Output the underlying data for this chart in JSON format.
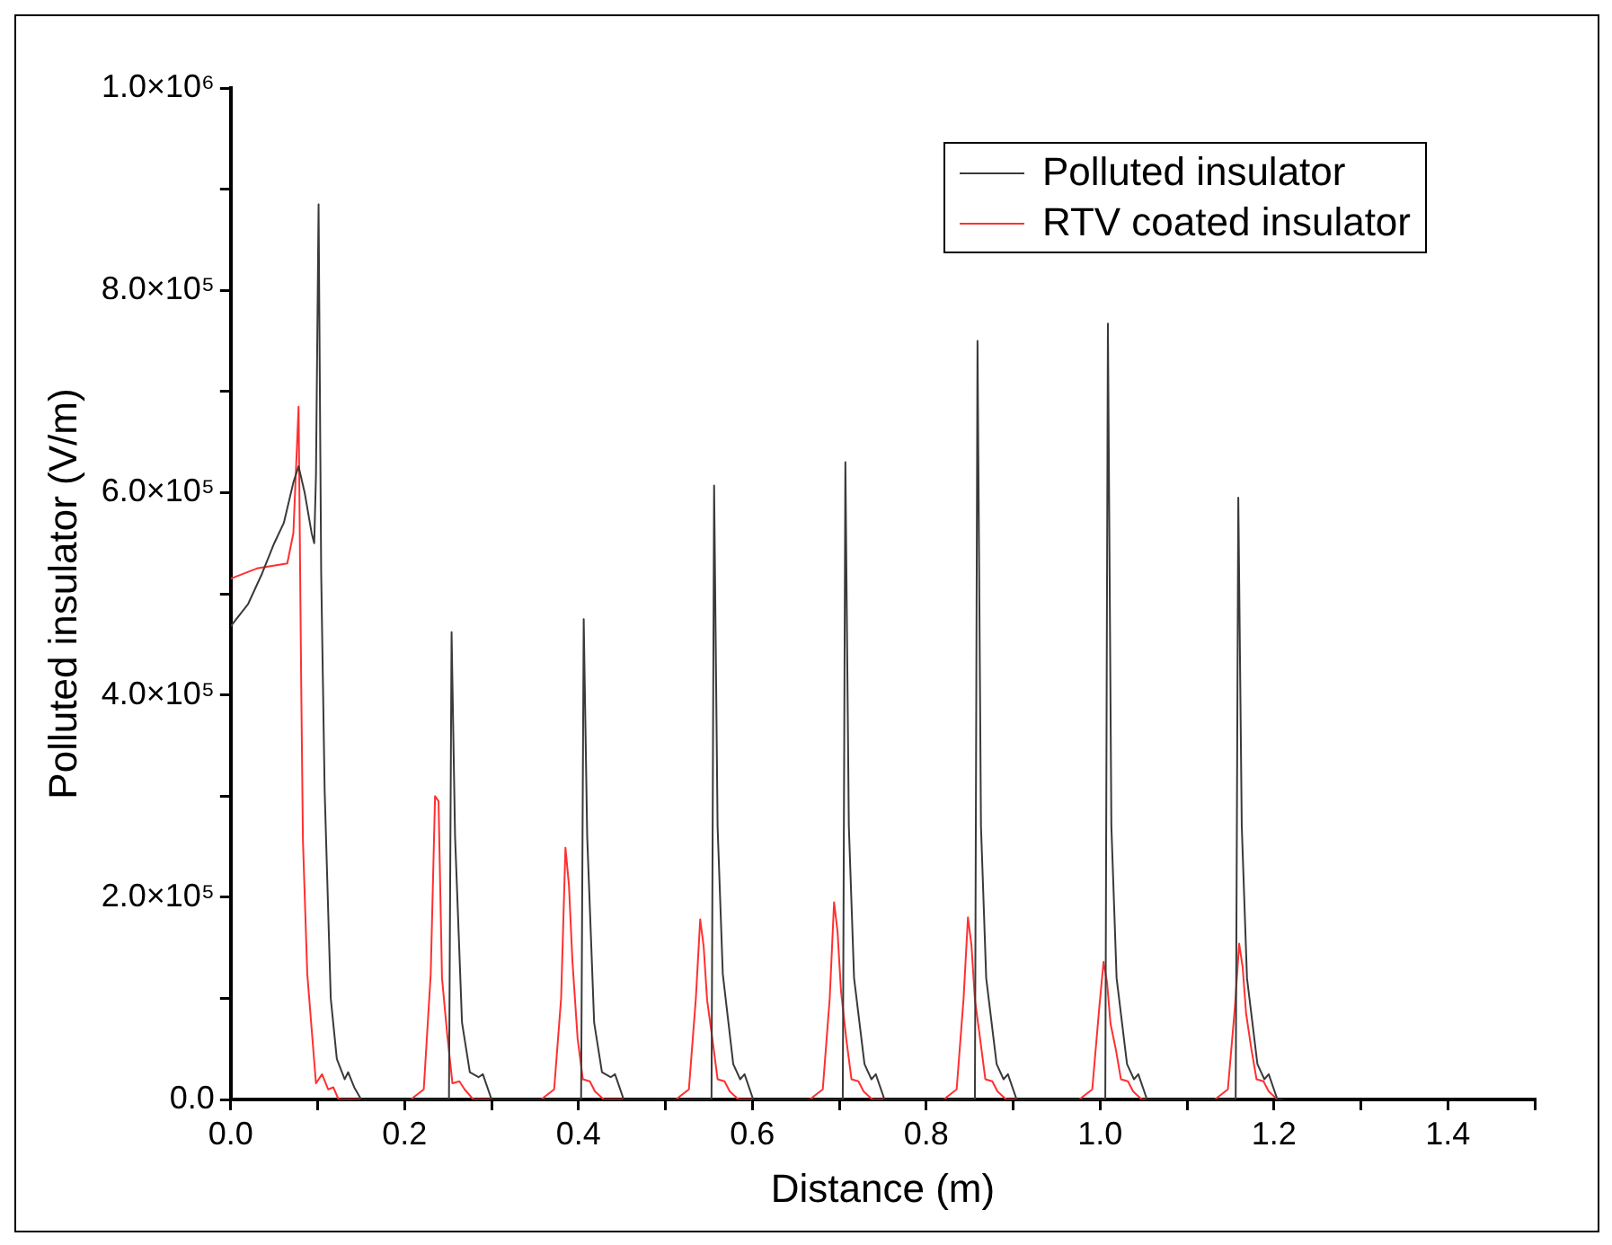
{
  "chart_data": {
    "type": "line",
    "xlabel": "Distance (m)",
    "ylabel": "Polluted insulator (V/m)",
    "xlim": [
      0,
      1.5
    ],
    "xticks": [
      {
        "value": 0,
        "label": "0.0"
      },
      {
        "value": 0.1,
        "label": null
      },
      0.2,
      {
        "value": 0.3,
        "label": null
      },
      0.4,
      {
        "value": 0.5,
        "label": null
      },
      0.6,
      {
        "value": 0.7,
        "label": null
      },
      0.8,
      {
        "value": 0.9,
        "label": null
      },
      {
        "value": 1,
        "label": "1.0"
      },
      {
        "value": 1.1,
        "label": null
      },
      1.2,
      {
        "value": 1.3,
        "label": null
      },
      1.4,
      {
        "value": 1.5,
        "label": null
      }
    ],
    "ylim": [
      0,
      1000000
    ],
    "yticks": [
      {
        "value": 0,
        "label": "0.0"
      },
      {
        "value": 100000,
        "label": null
      },
      {
        "value": 200000,
        "label": "2.0×10⁵"
      },
      {
        "value": 300000,
        "label": null
      },
      {
        "value": 400000,
        "label": "4.0×10⁵"
      },
      {
        "value": 500000,
        "label": null
      },
      {
        "value": 600000,
        "label": "6.0×10⁵"
      },
      {
        "value": 700000,
        "label": null
      },
      {
        "value": 800000,
        "label": "8.0×10⁵"
      },
      {
        "value": 900000,
        "label": null
      },
      {
        "value": 1000000,
        "label": "1.0×10⁶"
      }
    ],
    "grid": false,
    "legend": "top right",
    "marker": "none",
    "line_style": "solid",
    "series": [
      {
        "name": "Polluted insulator",
        "color": "#3a3a3a",
        "x": [
          0,
          0.02,
          0.036,
          0.05,
          0.061,
          0.072,
          0.078,
          0.085,
          0.093,
          0.096,
          0.098,
          0.101,
          0.104,
          0.108,
          0.115,
          0.122,
          0.131,
          0.135,
          0.142,
          0.15,
          0.251,
          0.254,
          0.258,
          0.266,
          0.275,
          0.285,
          0.29,
          0.3,
          0.403,
          0.406,
          0.41,
          0.418,
          0.427,
          0.437,
          0.442,
          0.452,
          0.553,
          0.556,
          0.56,
          0.566,
          0.578,
          0.586,
          0.591,
          0.601,
          0.704,
          0.707,
          0.711,
          0.717,
          0.729,
          0.737,
          0.742,
          0.752,
          0.856,
          0.859,
          0.863,
          0.869,
          0.881,
          0.889,
          0.894,
          0.904,
          1.006,
          1.009,
          1.013,
          1.019,
          1.031,
          1.039,
          1.044,
          1.054,
          1.156,
          1.159,
          1.163,
          1.169,
          1.181,
          1.189,
          1.194,
          1.204,
          1.21
        ],
        "values": [
          468000,
          490000,
          520000,
          550000,
          570000,
          610000,
          626000,
          600000,
          560000,
          550000,
          617000,
          885000,
          520000,
          305000,
          100000,
          40000,
          20000,
          27000,
          12000,
          0,
          0,
          462000,
          260000,
          76000,
          27000,
          22000,
          25000,
          0,
          0,
          475000,
          260000,
          76000,
          27000,
          22000,
          25000,
          0,
          0,
          607000,
          270000,
          124000,
          35000,
          20000,
          25000,
          0,
          0,
          630000,
          270000,
          120000,
          35000,
          20000,
          25000,
          0,
          0,
          750000,
          270000,
          120000,
          35000,
          20000,
          25000,
          0,
          0,
          767000,
          270000,
          120000,
          35000,
          20000,
          25000,
          0,
          0,
          595000,
          270000,
          120000,
          35000,
          20000,
          25000,
          0,
          0
        ]
      },
      {
        "name": "RTV coated insulator",
        "color": "#ff3030",
        "x": [
          0,
          0.03,
          0.065,
          0.072,
          0.078,
          0.081,
          0.083,
          0.088,
          0.098,
          0.105,
          0.112,
          0.118,
          0.124,
          0.207,
          0.222,
          0.23,
          0.235,
          0.239,
          0.243,
          0.249,
          0.255,
          0.263,
          0.269,
          0.279,
          0.357,
          0.372,
          0.38,
          0.385,
          0.389,
          0.393,
          0.399,
          0.405,
          0.413,
          0.419,
          0.429,
          0.512,
          0.527,
          0.535,
          0.54,
          0.544,
          0.548,
          0.554,
          0.56,
          0.568,
          0.574,
          0.584,
          0.666,
          0.681,
          0.689,
          0.694,
          0.698,
          0.702,
          0.708,
          0.714,
          0.722,
          0.728,
          0.738,
          0.82,
          0.835,
          0.843,
          0.848,
          0.852,
          0.856,
          0.862,
          0.868,
          0.876,
          0.882,
          0.892,
          0.976,
          0.991,
          0.999,
          1.004,
          1.008,
          1.012,
          1.018,
          1.024,
          1.032,
          1.038,
          1.048,
          1.132,
          1.147,
          1.155,
          1.16,
          1.164,
          1.168,
          1.174,
          1.18,
          1.188,
          1.194,
          1.204,
          1.21
        ],
        "values": [
          515000,
          525000,
          530000,
          560000,
          685000,
          413000,
          256000,
          124000,
          16000,
          25000,
          10000,
          12000,
          0,
          0,
          10000,
          124000,
          300000,
          295000,
          120000,
          64000,
          16000,
          18000,
          10000,
          0,
          0,
          10000,
          100000,
          249000,
          212000,
          137000,
          60000,
          20000,
          18000,
          8000,
          0,
          0,
          10000,
          100000,
          178000,
          151000,
          98000,
          60000,
          20000,
          18000,
          8000,
          0,
          0,
          10000,
          100000,
          195000,
          166000,
          107000,
          60000,
          20000,
          18000,
          8000,
          0,
          0,
          10000,
          100000,
          180000,
          153000,
          99000,
          60000,
          20000,
          18000,
          8000,
          0,
          0,
          10000,
          90000,
          136000,
          116000,
          75000,
          50000,
          20000,
          18000,
          8000,
          0,
          0,
          10000,
          90000,
          154000,
          131000,
          85000,
          50000,
          20000,
          18000,
          8000,
          0,
          0
        ]
      }
    ]
  }
}
